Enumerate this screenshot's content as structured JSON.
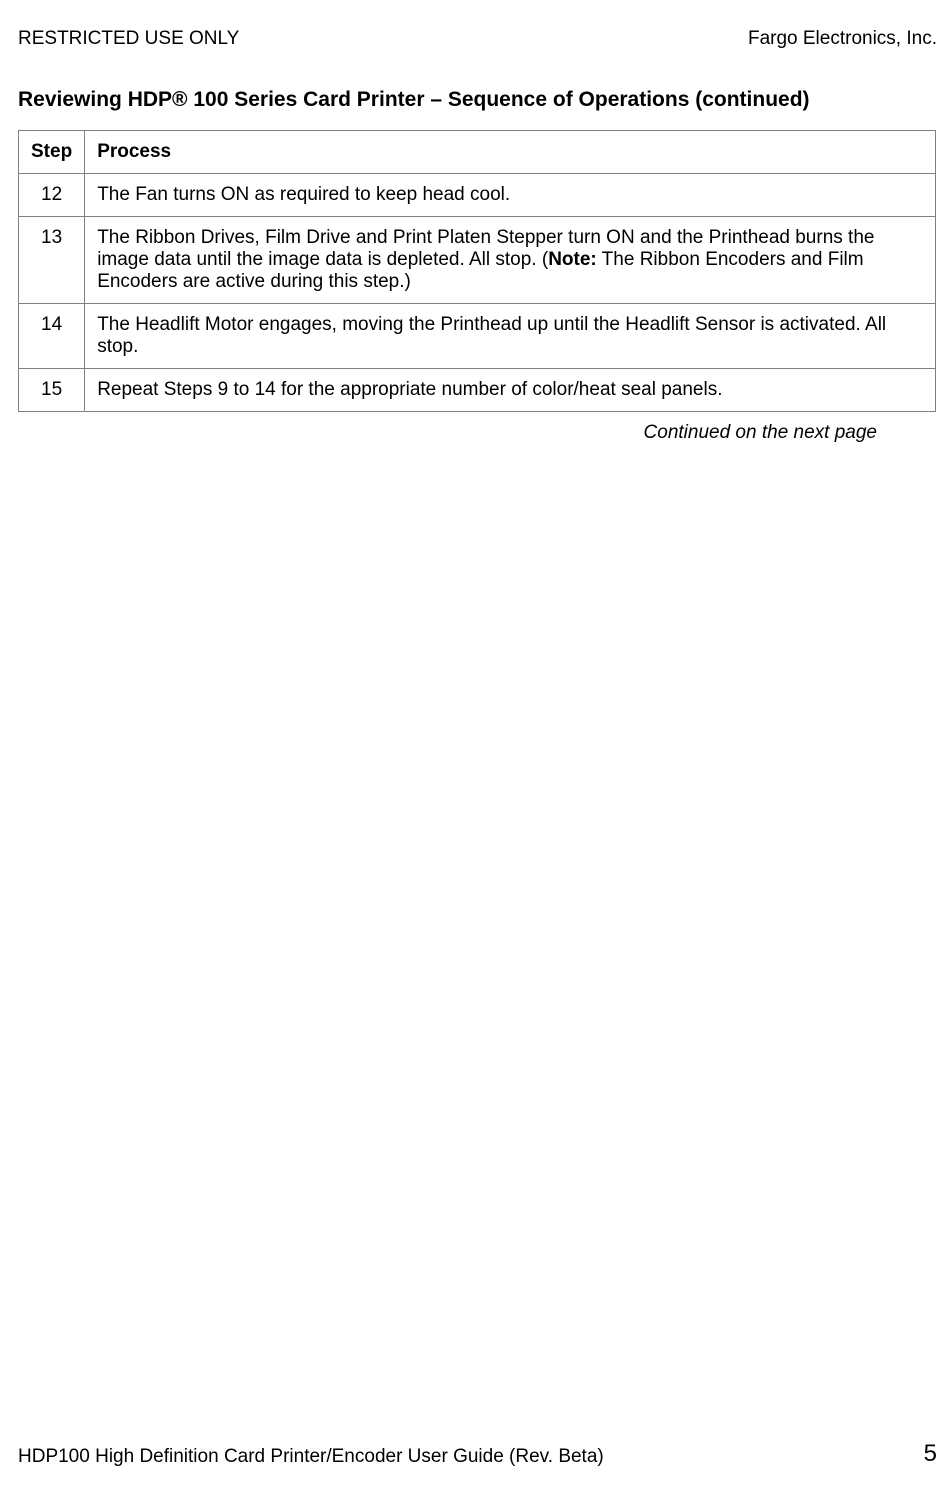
{
  "header": {
    "left": "RESTRICTED USE ONLY",
    "right": "Fargo Electronics, Inc."
  },
  "heading": {
    "prefix": "Reviewing HDP",
    "reg": "®",
    "suffix": " 100 Series Card Printer – Sequence of Operations (continued)"
  },
  "table": {
    "col1": "Step",
    "col2": "Process",
    "rows": [
      {
        "step": "12",
        "process": "The Fan turns ON as required to keep head cool."
      },
      {
        "step": "13",
        "process_pre": "The Ribbon Drives, Film Drive and Print Platen Stepper turn ON and the Printhead burns the image data until the image data is depleted. All stop. (",
        "note_label": "Note:",
        "process_post": "  The Ribbon Encoders and Film Encoders are active during this step.)"
      },
      {
        "step": "14",
        "process": "The Headlift Motor engages, moving the Printhead up until the Headlift Sensor is activated. All stop."
      },
      {
        "step": "15",
        "process": "Repeat Steps 9 to 14 for the appropriate number of color/heat seal panels."
      }
    ]
  },
  "continued": "Continued on the next page",
  "footer": {
    "left": "HDP100 High Definition Card Printer/Encoder User Guide (Rev. Beta)",
    "page": "5"
  }
}
